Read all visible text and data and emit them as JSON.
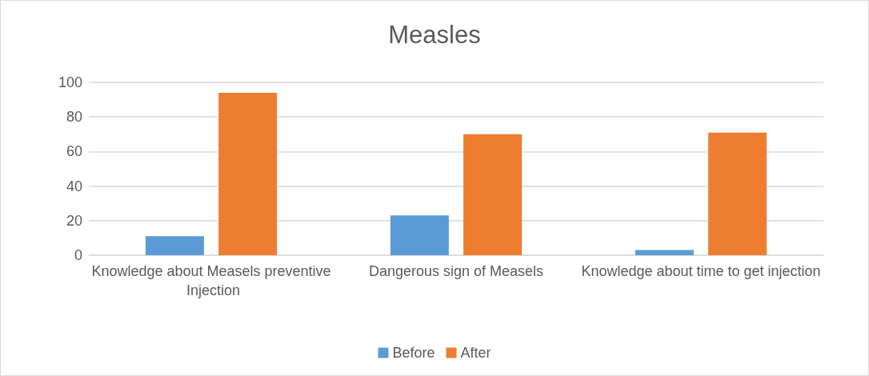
{
  "chart_data": {
    "type": "bar",
    "title": "Measles",
    "categories": [
      "Knowledge about Measels preventive Injection",
      "Dangerous sign of Measels",
      "Knowledge about time to get injection"
    ],
    "series": [
      {
        "name": "Before",
        "color": "#5b9bd5",
        "values": [
          11,
          23,
          3
        ]
      },
      {
        "name": "After",
        "color": "#ed7d31",
        "values": [
          94,
          70,
          71
        ]
      }
    ],
    "ylim": [
      0,
      100
    ],
    "yticks": [
      0,
      20,
      40,
      60,
      80,
      100
    ],
    "grid": "y",
    "legend": "bottom"
  }
}
